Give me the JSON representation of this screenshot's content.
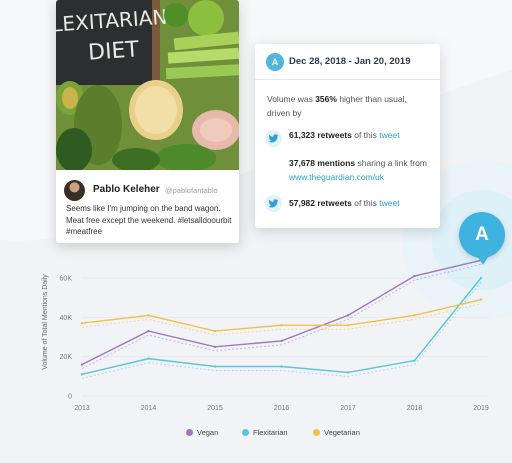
{
  "tweet": {
    "name": "Pablo Keleher",
    "handle": "@pablofantablo",
    "text": "Seems like I'm jumping on the band wagon. Meat free except the weekend. #letsalldoourbit #meatfree",
    "photo_caption": "FLEXITARIAN DIET"
  },
  "insight": {
    "badge": "A",
    "date_range": "Dec 28, 2018 - Jan 20, 2019",
    "summary_prefix": "Volume was ",
    "summary_pct": "356%",
    "summary_suffix": " higher than usual, driven by",
    "row1": {
      "count": "61,323 retweets",
      "mid": " of this ",
      "link": "tweet"
    },
    "row2": {
      "count": "37,678 mentions",
      "mid": " sharing a link from ",
      "link": "www.theguardian.com/uk"
    },
    "row3": {
      "count": "57,982 retweets",
      "mid": " of this ",
      "link": "tweet"
    }
  },
  "pin": {
    "label": "A"
  },
  "colors": {
    "vegan": "#9b7ac4",
    "flexitarian": "#5fc3dc",
    "vegetarian": "#f1c04b",
    "accent": "#3fb3df"
  },
  "chart_data": {
    "type": "line",
    "ylabel": "Volume of Total Mentions Daily",
    "xlabel": "",
    "x": [
      "2013",
      "2014",
      "2015",
      "2016",
      "2017",
      "2018",
      "2019"
    ],
    "yticks": [
      "0",
      "20K",
      "40K",
      "60K"
    ],
    "ylim": [
      0,
      60000
    ],
    "grid": true,
    "series": [
      {
        "name": "Vegan",
        "color": "#9b7ac4",
        "values": [
          16000,
          33000,
          25000,
          28000,
          41000,
          61000,
          69000
        ]
      },
      {
        "name": "Flexitarian",
        "color": "#5fc3dc",
        "values": [
          11000,
          19000,
          15000,
          15000,
          12000,
          18000,
          60000
        ]
      },
      {
        "name": "Vegetarian",
        "color": "#f1c04b",
        "values": [
          37000,
          41000,
          33000,
          36000,
          36000,
          41000,
          49000
        ]
      }
    ],
    "legend": "bottom"
  }
}
